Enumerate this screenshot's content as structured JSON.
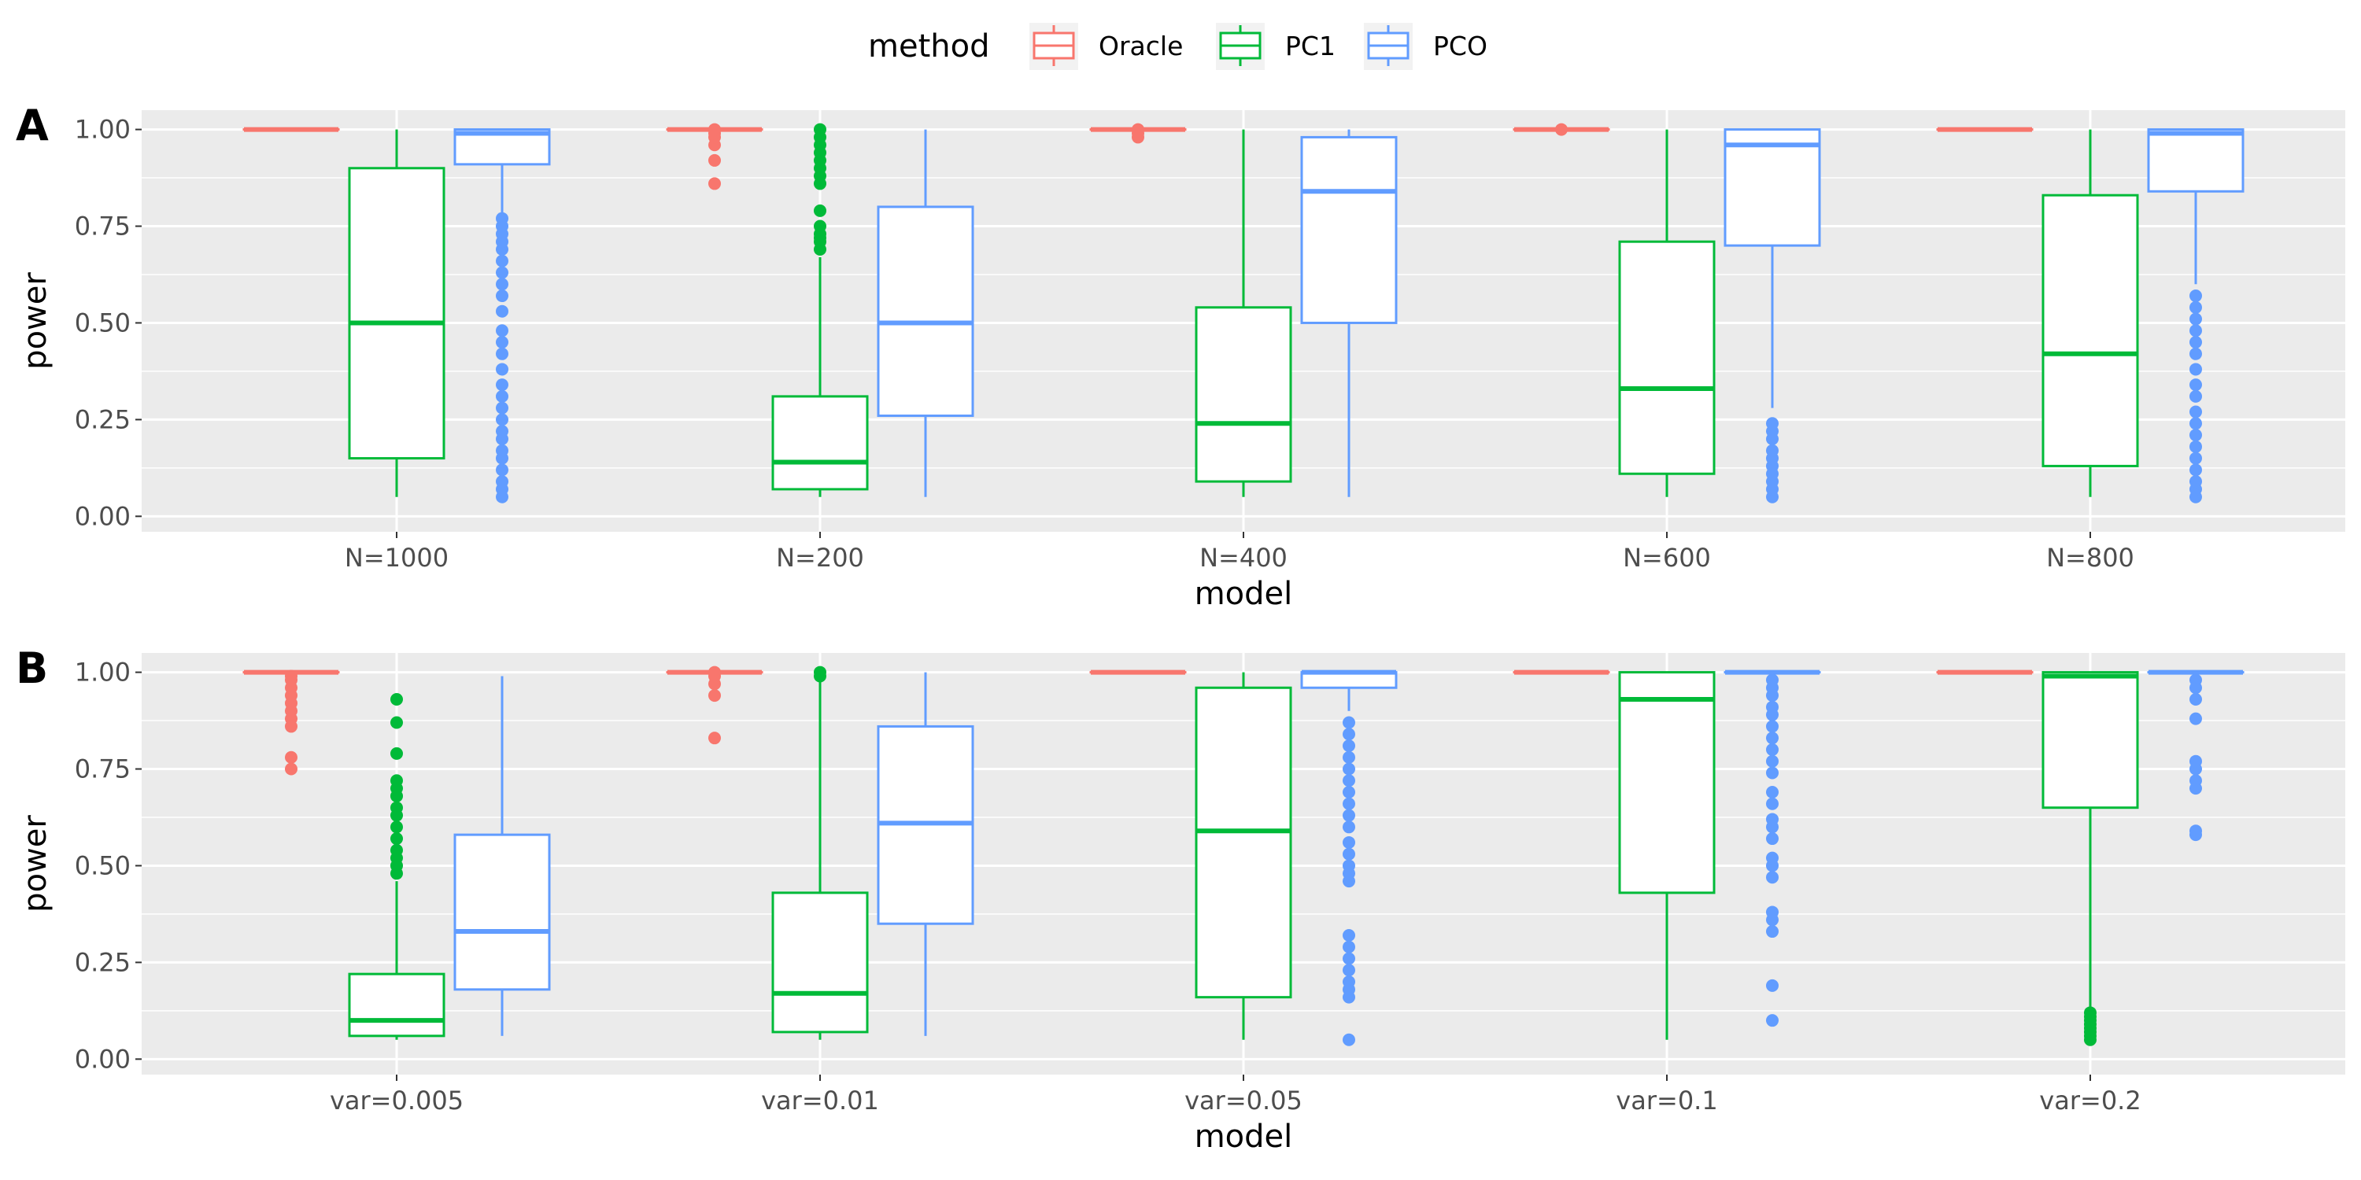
{
  "chart_data": [
    {
      "type": "boxplot",
      "panel_label": "A",
      "xlabel": "model",
      "ylabel": "power",
      "ylim": [
        -0.04,
        1.05
      ],
      "yticks": [
        0.0,
        0.25,
        0.5,
        0.75,
        1.0
      ],
      "ytick_labels": [
        "0.00",
        "0.25",
        "0.50",
        "0.75",
        "1.00"
      ],
      "categories": [
        "N=1000",
        "N=200",
        "N=400",
        "N=600",
        "N=800"
      ],
      "series": [
        {
          "name": "Oracle",
          "boxes": [
            {
              "q1": 1.0,
              "median": 1.0,
              "q3": 1.0,
              "lower": 1.0,
              "upper": 1.0,
              "outliers": []
            },
            {
              "q1": 1.0,
              "median": 1.0,
              "q3": 1.0,
              "lower": 1.0,
              "upper": 1.0,
              "outliers": [
                0.86,
                0.92,
                0.96,
                0.98,
                0.99,
                1.0
              ]
            },
            {
              "q1": 1.0,
              "median": 1.0,
              "q3": 1.0,
              "lower": 1.0,
              "upper": 1.0,
              "outliers": [
                0.98,
                0.99,
                1.0
              ]
            },
            {
              "q1": 1.0,
              "median": 1.0,
              "q3": 1.0,
              "lower": 1.0,
              "upper": 1.0,
              "outliers": [
                1.0
              ]
            },
            {
              "q1": 1.0,
              "median": 1.0,
              "q3": 1.0,
              "lower": 1.0,
              "upper": 1.0,
              "outliers": []
            }
          ]
        },
        {
          "name": "PC1",
          "boxes": [
            {
              "q1": 0.15,
              "median": 0.5,
              "q3": 0.9,
              "lower": 0.05,
              "upper": 1.0,
              "outliers": []
            },
            {
              "q1": 0.07,
              "median": 0.14,
              "q3": 0.31,
              "lower": 0.05,
              "upper": 0.67,
              "outliers": [
                0.69,
                0.71,
                0.72,
                0.73,
                0.75,
                0.79,
                0.86,
                0.88,
                0.9,
                0.92,
                0.94,
                0.96,
                0.98,
                1.0
              ]
            },
            {
              "q1": 0.09,
              "median": 0.24,
              "q3": 0.54,
              "lower": 0.05,
              "upper": 1.0,
              "outliers": []
            },
            {
              "q1": 0.11,
              "median": 0.33,
              "q3": 0.71,
              "lower": 0.05,
              "upper": 1.0,
              "outliers": []
            },
            {
              "q1": 0.13,
              "median": 0.42,
              "q3": 0.83,
              "lower": 0.05,
              "upper": 1.0,
              "outliers": []
            }
          ]
        },
        {
          "name": "PCO",
          "boxes": [
            {
              "q1": 0.91,
              "median": 0.99,
              "q3": 1.0,
              "lower": 0.78,
              "upper": 1.0,
              "outliers": [
                0.05,
                0.07,
                0.09,
                0.12,
                0.15,
                0.17,
                0.2,
                0.22,
                0.25,
                0.28,
                0.31,
                0.34,
                0.38,
                0.42,
                0.45,
                0.48,
                0.53,
                0.57,
                0.6,
                0.63,
                0.66,
                0.69,
                0.71,
                0.73,
                0.75,
                0.77
              ]
            },
            {
              "q1": 0.26,
              "median": 0.5,
              "q3": 0.8,
              "lower": 0.05,
              "upper": 1.0,
              "outliers": []
            },
            {
              "q1": 0.5,
              "median": 0.84,
              "q3": 0.98,
              "lower": 0.05,
              "upper": 1.0,
              "outliers": []
            },
            {
              "q1": 0.7,
              "median": 0.96,
              "q3": 1.0,
              "lower": 0.28,
              "upper": 1.0,
              "outliers": [
                0.05,
                0.07,
                0.09,
                0.11,
                0.13,
                0.15,
                0.17,
                0.2,
                0.22,
                0.24
              ]
            },
            {
              "q1": 0.84,
              "median": 0.99,
              "q3": 1.0,
              "lower": 0.6,
              "upper": 1.0,
              "outliers": [
                0.05,
                0.07,
                0.09,
                0.12,
                0.15,
                0.18,
                0.21,
                0.24,
                0.27,
                0.31,
                0.34,
                0.38,
                0.42,
                0.45,
                0.48,
                0.51,
                0.54,
                0.57
              ]
            }
          ]
        }
      ]
    },
    {
      "type": "boxplot",
      "panel_label": "B",
      "xlabel": "model",
      "ylabel": "power",
      "ylim": [
        -0.04,
        1.05
      ],
      "yticks": [
        0.0,
        0.25,
        0.5,
        0.75,
        1.0
      ],
      "ytick_labels": [
        "0.00",
        "0.25",
        "0.50",
        "0.75",
        "1.00"
      ],
      "categories": [
        "var=0.005",
        "var=0.01",
        "var=0.05",
        "var=0.1",
        "var=0.2"
      ],
      "series": [
        {
          "name": "Oracle",
          "boxes": [
            {
              "q1": 1.0,
              "median": 1.0,
              "q3": 1.0,
              "lower": 1.0,
              "upper": 1.0,
              "outliers": [
                0.75,
                0.78,
                0.86,
                0.88,
                0.9,
                0.92,
                0.94,
                0.96,
                0.98,
                0.99
              ]
            },
            {
              "q1": 1.0,
              "median": 1.0,
              "q3": 1.0,
              "lower": 1.0,
              "upper": 1.0,
              "outliers": [
                0.83,
                0.94,
                0.97,
                0.99,
                1.0
              ]
            },
            {
              "q1": 1.0,
              "median": 1.0,
              "q3": 1.0,
              "lower": 1.0,
              "upper": 1.0,
              "outliers": []
            },
            {
              "q1": 1.0,
              "median": 1.0,
              "q3": 1.0,
              "lower": 1.0,
              "upper": 1.0,
              "outliers": []
            },
            {
              "q1": 1.0,
              "median": 1.0,
              "q3": 1.0,
              "lower": 1.0,
              "upper": 1.0,
              "outliers": []
            }
          ]
        },
        {
          "name": "PC1",
          "boxes": [
            {
              "q1": 0.06,
              "median": 0.1,
              "q3": 0.22,
              "lower": 0.05,
              "upper": 0.46,
              "outliers": [
                0.48,
                0.5,
                0.52,
                0.54,
                0.57,
                0.6,
                0.63,
                0.65,
                0.68,
                0.7,
                0.72,
                0.79,
                0.87,
                0.93
              ]
            },
            {
              "q1": 0.07,
              "median": 0.17,
              "q3": 0.43,
              "lower": 0.05,
              "upper": 0.98,
              "outliers": [
                0.99,
                1.0
              ]
            },
            {
              "q1": 0.16,
              "median": 0.59,
              "q3": 0.96,
              "lower": 0.05,
              "upper": 1.0,
              "outliers": []
            },
            {
              "q1": 0.43,
              "median": 0.93,
              "q3": 1.0,
              "lower": 0.05,
              "upper": 1.0,
              "outliers": []
            },
            {
              "q1": 0.65,
              "median": 0.99,
              "q3": 1.0,
              "lower": 0.13,
              "upper": 1.0,
              "outliers": [
                0.05,
                0.06,
                0.07,
                0.08,
                0.09,
                0.1,
                0.11,
                0.12
              ]
            }
          ]
        },
        {
          "name": "PCO",
          "boxes": [
            {
              "q1": 0.18,
              "median": 0.33,
              "q3": 0.58,
              "lower": 0.06,
              "upper": 0.99,
              "outliers": []
            },
            {
              "q1": 0.35,
              "median": 0.61,
              "q3": 0.86,
              "lower": 0.06,
              "upper": 1.0,
              "outliers": []
            },
            {
              "q1": 0.96,
              "median": 1.0,
              "q3": 1.0,
              "lower": 0.9,
              "upper": 1.0,
              "outliers": [
                0.05,
                0.16,
                0.18,
                0.2,
                0.23,
                0.26,
                0.29,
                0.32,
                0.46,
                0.48,
                0.5,
                0.53,
                0.56,
                0.6,
                0.63,
                0.66,
                0.69,
                0.72,
                0.75,
                0.78,
                0.81,
                0.84,
                0.87
              ]
            },
            {
              "q1": 1.0,
              "median": 1.0,
              "q3": 1.0,
              "lower": 1.0,
              "upper": 1.0,
              "outliers": [
                0.1,
                0.19,
                0.33,
                0.36,
                0.38,
                0.47,
                0.5,
                0.52,
                0.57,
                0.6,
                0.62,
                0.66,
                0.69,
                0.74,
                0.77,
                0.8,
                0.83,
                0.86,
                0.89,
                0.91,
                0.94,
                0.96,
                0.98
              ]
            },
            {
              "q1": 1.0,
              "median": 1.0,
              "q3": 1.0,
              "lower": 1.0,
              "upper": 1.0,
              "outliers": [
                0.58,
                0.59,
                0.7,
                0.72,
                0.75,
                0.77,
                0.88,
                0.93,
                0.96,
                0.98
              ]
            }
          ]
        }
      ]
    }
  ],
  "legend": {
    "title": "method",
    "entries": [
      {
        "label": "Oracle",
        "color": "#F8766D"
      },
      {
        "label": "PC1",
        "color": "#00BA38"
      },
      {
        "label": "PCO",
        "color": "#619CFF"
      }
    ]
  },
  "colors": {
    "panel_background": "#EBEBEB",
    "grid": "#FFFFFF",
    "box_fill": "#FFFFFF",
    "tick_text": "#4D4D4D"
  }
}
